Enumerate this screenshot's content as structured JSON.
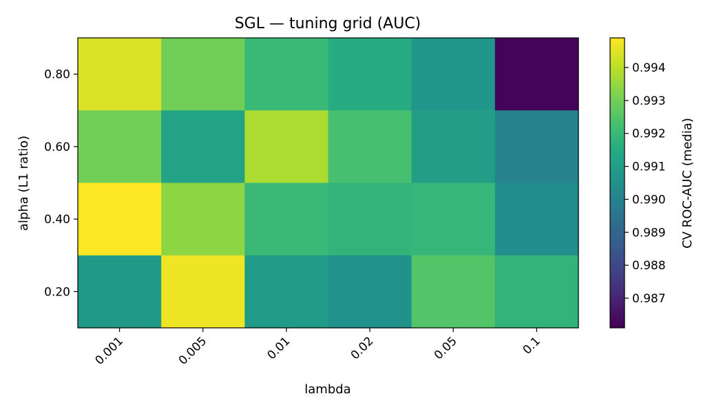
{
  "chart_data": {
    "type": "heatmap",
    "title": "SGL — tuning grid (AUC)",
    "xlabel": "lambda",
    "ylabel": "alpha (L1 ratio)",
    "x_categories": [
      "0.001",
      "0.005",
      "0.01",
      "0.02",
      "0.05",
      "0.1"
    ],
    "y_categories": [
      "0.80",
      "0.60",
      "0.40",
      "0.20"
    ],
    "values": [
      [
        0.9944,
        0.993,
        0.992,
        0.9915,
        0.9907,
        0.9862
      ],
      [
        0.993,
        0.9912,
        0.9938,
        0.9923,
        0.991,
        0.99
      ],
      [
        0.9949,
        0.9934,
        0.992,
        0.9918,
        0.9919,
        0.9904
      ],
      [
        0.9908,
        0.9947,
        0.9909,
        0.9905,
        0.9925,
        0.9918
      ]
    ],
    "colorbar": {
      "label": "CV ROC-AUC (media)",
      "min": 0.9861,
      "max": 0.9949,
      "ticks": [
        "0.987",
        "0.988",
        "0.989",
        "0.990",
        "0.991",
        "0.992",
        "0.993",
        "0.994"
      ],
      "colormap": "viridis"
    },
    "grid": false
  }
}
